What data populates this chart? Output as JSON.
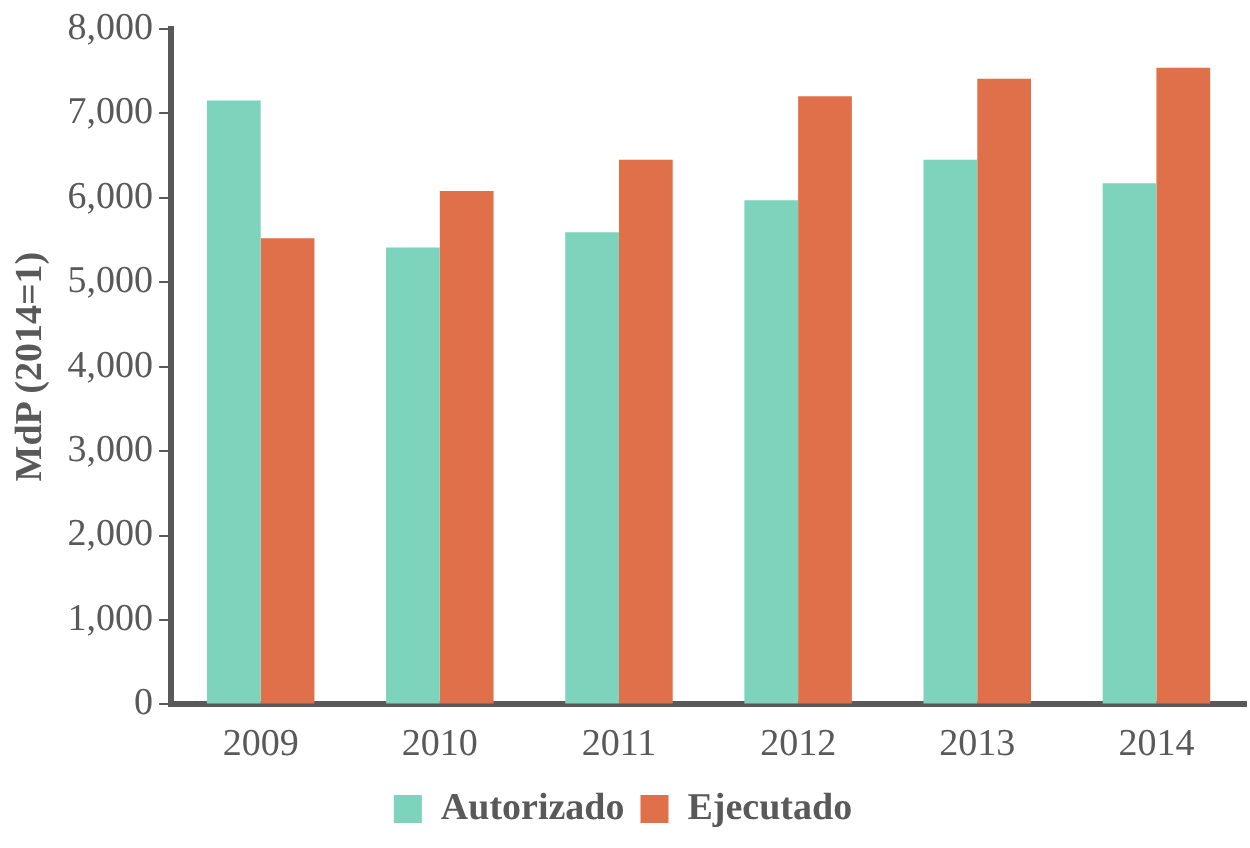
{
  "chart_data": {
    "type": "bar",
    "ylabel": "MdP (2014=1)",
    "categories": [
      "2009",
      "2010",
      "2011",
      "2012",
      "2013",
      "2014"
    ],
    "series": [
      {
        "name": "Autorizado",
        "color": "#7dd3bc",
        "values": [
          7150,
          5410,
          5590,
          5970,
          6450,
          6170
        ]
      },
      {
        "name": "Ejecutado",
        "color": "#e0704a",
        "values": [
          5520,
          6080,
          6450,
          7200,
          7410,
          7540
        ]
      }
    ],
    "ylim": [
      0,
      8000
    ],
    "yticks": [
      {
        "value": 0,
        "label": "0"
      },
      {
        "value": 1000,
        "label": "1,000"
      },
      {
        "value": 2000,
        "label": "2,000"
      },
      {
        "value": 3000,
        "label": "3,000"
      },
      {
        "value": 4000,
        "label": "4,000"
      },
      {
        "value": 5000,
        "label": "5,000"
      },
      {
        "value": 6000,
        "label": "6,000"
      },
      {
        "value": 7000,
        "label": "7,000"
      },
      {
        "value": 8000,
        "label": "8,000"
      }
    ],
    "grid": false,
    "legend": "bottom"
  }
}
